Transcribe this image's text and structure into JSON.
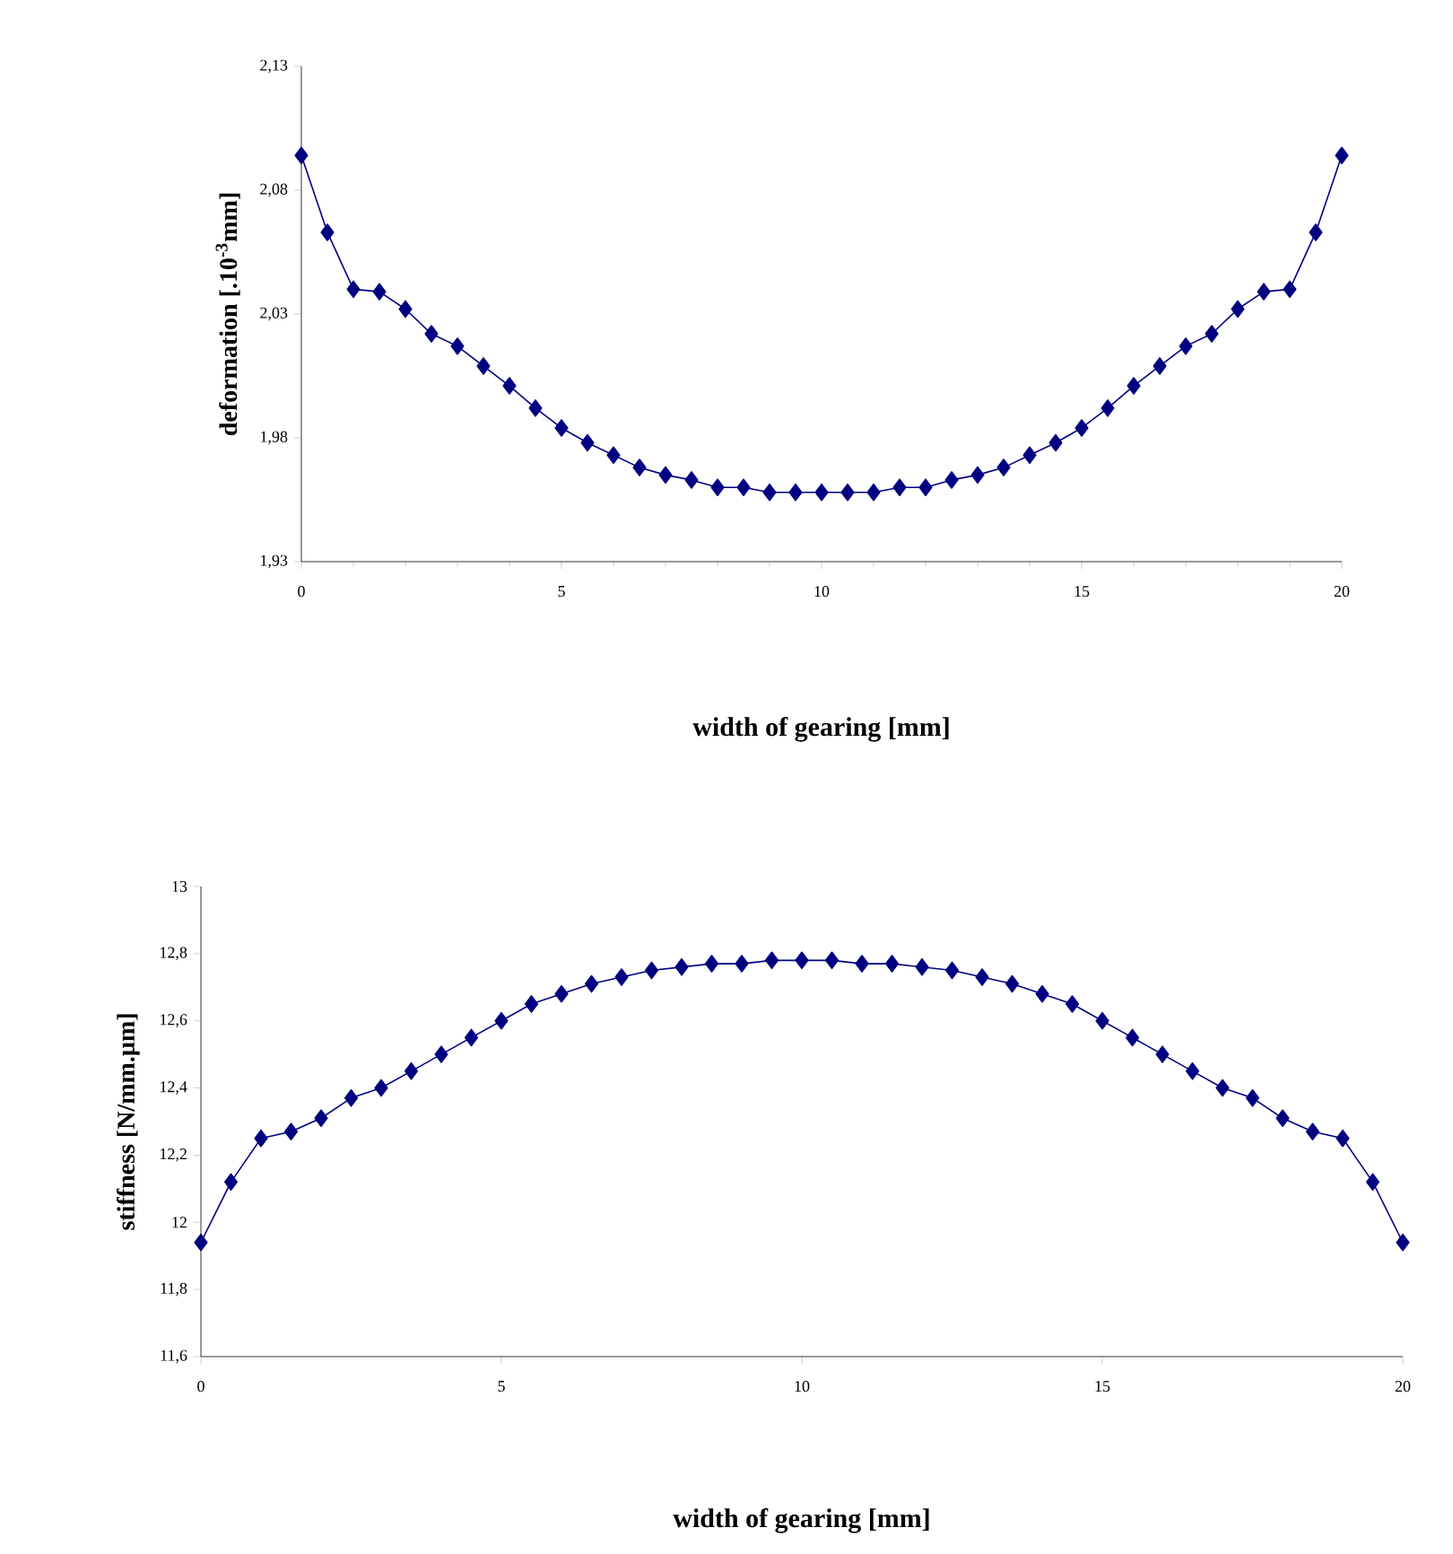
{
  "chart_data": [
    {
      "type": "line",
      "xlabel": "width of gearing [mm]",
      "ylabel": "deformation [.10$^{-3}$mm]",
      "color": "#000080",
      "marker": "diamond",
      "line_style": "solid",
      "x": [
        0,
        0.5,
        1,
        1.5,
        2,
        2.5,
        3,
        3.5,
        4,
        4.5,
        5,
        5.5,
        6,
        6.5,
        7,
        7.5,
        8,
        8.5,
        9,
        9.5,
        10,
        10.5,
        11,
        11.5,
        12,
        12.5,
        13,
        13.5,
        14,
        14.5,
        15,
        15.5,
        16,
        16.5,
        17,
        17.5,
        18,
        18.5,
        19,
        19.5,
        20
      ],
      "values": [
        2.094,
        2.063,
        2.04,
        2.039,
        2.032,
        2.022,
        2.017,
        2.009,
        2.001,
        1.992,
        1.984,
        1.978,
        1.973,
        1.968,
        1.965,
        1.963,
        1.96,
        1.96,
        1.958,
        1.958,
        1.958,
        1.958,
        1.958,
        1.96,
        1.96,
        1.963,
        1.965,
        1.968,
        1.973,
        1.978,
        1.984,
        1.992,
        2.001,
        2.009,
        2.017,
        2.022,
        2.032,
        2.039,
        2.04,
        2.063,
        2.094
      ],
      "xlim": [
        0,
        20
      ],
      "xticks": [
        0,
        5,
        10,
        15,
        20
      ],
      "ylim": [
        1.93,
        2.13
      ],
      "yticks": [
        {
          "value": 1.93,
          "label": "1,93"
        },
        {
          "value": 1.98,
          "label": "1,98"
        },
        {
          "value": 2.03,
          "label": "2,03"
        },
        {
          "value": 2.08,
          "label": "2,08"
        },
        {
          "value": 2.13,
          "label": "2,13"
        }
      ]
    },
    {
      "type": "line",
      "xlabel": "width of gearing [mm]",
      "ylabel": "stiffness [N/mm.µm]",
      "color": "#000080",
      "marker": "diamond",
      "line_style": "solid",
      "x": [
        0,
        0.5,
        1,
        1.5,
        2,
        2.5,
        3,
        3.5,
        4,
        4.5,
        5,
        5.5,
        6,
        6.5,
        7,
        7.5,
        8,
        8.5,
        9,
        9.5,
        10,
        10.5,
        11,
        11.5,
        12,
        12.5,
        13,
        13.5,
        14,
        14.5,
        15,
        15.5,
        16,
        16.5,
        17,
        17.5,
        18,
        18.5,
        19,
        19.5,
        20
      ],
      "values": [
        11.94,
        12.12,
        12.25,
        12.27,
        12.31,
        12.37,
        12.4,
        12.45,
        12.5,
        12.55,
        12.6,
        12.65,
        12.68,
        12.71,
        12.73,
        12.75,
        12.76,
        12.77,
        12.77,
        12.78,
        12.78,
        12.78,
        12.77,
        12.77,
        12.76,
        12.75,
        12.73,
        12.71,
        12.68,
        12.65,
        12.6,
        12.55,
        12.5,
        12.45,
        12.4,
        12.37,
        12.31,
        12.27,
        12.25,
        12.12,
        11.94
      ],
      "xlim": [
        0,
        20
      ],
      "xticks": [
        0,
        5,
        10,
        15,
        20
      ],
      "ylim": [
        11.6,
        13
      ],
      "yticks": [
        {
          "value": 11.6,
          "label": "11,6"
        },
        {
          "value": 11.8,
          "label": "11,8"
        },
        {
          "value": 12,
          "label": "12"
        },
        {
          "value": 12.2,
          "label": "12,2"
        },
        {
          "value": 12.4,
          "label": "12,4"
        },
        {
          "value": 12.6,
          "label": "12,6"
        },
        {
          "value": 12.8,
          "label": "12,8"
        },
        {
          "value": 13,
          "label": "13"
        }
      ]
    }
  ]
}
